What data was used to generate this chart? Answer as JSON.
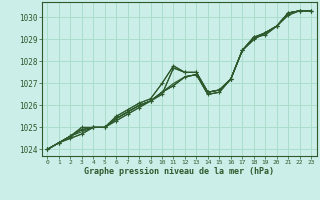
{
  "title": "Graphe pression niveau de la mer (hPa)",
  "background_color": "#cceee8",
  "grid_color": "#aaddcc",
  "line_color": "#2d5a2d",
  "xlim": [
    -0.5,
    23.5
  ],
  "ylim": [
    1023.7,
    1030.7
  ],
  "yticks": [
    1024,
    1025,
    1026,
    1027,
    1028,
    1029,
    1030
  ],
  "xticks": [
    0,
    1,
    2,
    3,
    4,
    5,
    6,
    7,
    8,
    9,
    10,
    11,
    12,
    13,
    14,
    15,
    16,
    17,
    18,
    19,
    20,
    21,
    22,
    23
  ],
  "series": [
    [
      1024.0,
      1024.3,
      1024.5,
      1024.7,
      1025.0,
      1025.0,
      1025.3,
      1025.6,
      1025.9,
      1026.2,
      1026.5,
      1027.7,
      1027.5,
      1027.5,
      1026.6,
      1026.7,
      1027.2,
      1028.5,
      1029.1,
      1029.3,
      1029.6,
      1030.2,
      1030.3,
      1030.3
    ],
    [
      1024.0,
      1024.3,
      1024.6,
      1024.8,
      1025.0,
      1025.0,
      1025.4,
      1025.7,
      1026.0,
      1026.2,
      1026.6,
      1027.0,
      1027.3,
      1027.4,
      1026.6,
      1026.7,
      1027.2,
      1028.5,
      1029.0,
      1029.3,
      1029.6,
      1030.2,
      1030.3,
      1030.3
    ],
    [
      1024.0,
      1024.3,
      1024.6,
      1024.9,
      1025.0,
      1025.0,
      1025.4,
      1025.7,
      1026.0,
      1026.2,
      1026.6,
      1026.9,
      1027.3,
      1027.4,
      1026.5,
      1026.6,
      1027.2,
      1028.5,
      1029.0,
      1029.3,
      1029.6,
      1030.2,
      1030.3,
      1030.3
    ],
    [
      1024.0,
      1024.3,
      1024.6,
      1024.9,
      1025.0,
      1025.0,
      1025.4,
      1025.7,
      1026.0,
      1026.2,
      1026.6,
      1026.9,
      1027.3,
      1027.4,
      1026.5,
      1026.6,
      1027.2,
      1028.5,
      1029.0,
      1029.3,
      1029.6,
      1030.2,
      1030.3,
      1030.3
    ],
    [
      1024.0,
      1024.3,
      1024.6,
      1025.0,
      1025.0,
      1025.0,
      1025.5,
      1025.8,
      1026.1,
      1026.3,
      1027.0,
      1027.8,
      1027.5,
      1027.5,
      1026.6,
      1026.7,
      1027.2,
      1028.5,
      1029.1,
      1029.2,
      1029.6,
      1030.1,
      1030.3,
      1030.3
    ]
  ],
  "marker_series_idx": [
    0,
    2,
    4
  ],
  "x_label_fontsize": 5.5,
  "y_label_fontsize": 6
}
